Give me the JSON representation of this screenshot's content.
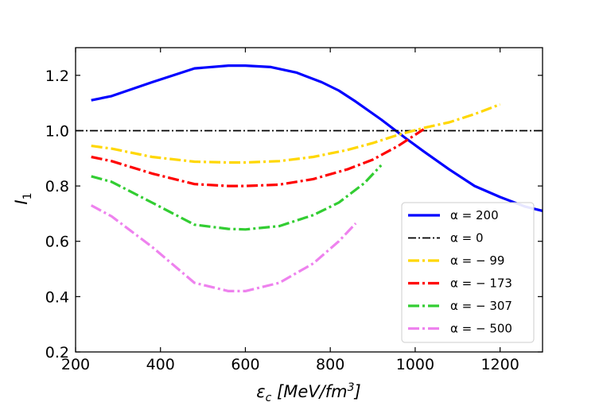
{
  "chart_data": {
    "type": "line",
    "xlabel": "ε_c [MeV/fm³]",
    "ylabel": "I_1",
    "xlim": [
      200,
      1300
    ],
    "ylim": [
      0.2,
      1.3
    ],
    "xticks": [
      "200",
      "400",
      "600",
      "800",
      "1000",
      "1200"
    ],
    "yticks": [
      "0.2",
      "0.4",
      "0.6",
      "0.8",
      "1.0",
      "1.2"
    ],
    "grid": false,
    "legend_position": "bottom-right",
    "series": [
      {
        "name": "α = 200",
        "color": "#0000ff",
        "style": "solid",
        "x": [
          237,
          285,
          380,
          480,
          560,
          600,
          660,
          720,
          780,
          820,
          860,
          920,
          980,
          1020,
          1080,
          1140,
          1200,
          1260,
          1300
        ],
        "y": [
          1.11,
          1.125,
          1.175,
          1.225,
          1.235,
          1.235,
          1.23,
          1.21,
          1.175,
          1.145,
          1.105,
          1.04,
          0.97,
          0.925,
          0.86,
          0.8,
          0.76,
          0.725,
          0.71
        ]
      },
      {
        "name": "α = 0",
        "color": "#000000",
        "style": "dashdot-thin",
        "x": [
          200,
          1300
        ],
        "y": [
          1.0,
          1.0
        ]
      },
      {
        "name": "α = − 99",
        "color": "#ffd700",
        "style": "dashdot",
        "x": [
          237,
          285,
          380,
          480,
          560,
          600,
          680,
          760,
          840,
          900,
          960,
          1020,
          1080,
          1140,
          1200
        ],
        "y": [
          0.945,
          0.935,
          0.905,
          0.888,
          0.885,
          0.885,
          0.89,
          0.905,
          0.93,
          0.955,
          0.985,
          1.01,
          1.03,
          1.06,
          1.095
        ]
      },
      {
        "name": "α = − 173",
        "color": "#ff0000",
        "style": "dashdot",
        "x": [
          237,
          285,
          380,
          480,
          560,
          600,
          680,
          760,
          840,
          900,
          960,
          1000,
          1020
        ],
        "y": [
          0.905,
          0.89,
          0.845,
          0.807,
          0.8,
          0.8,
          0.805,
          0.825,
          0.86,
          0.895,
          0.945,
          0.985,
          1.005
        ]
      },
      {
        "name": "α = − 307",
        "color": "#32cd32",
        "style": "dashdot",
        "x": [
          237,
          285,
          380,
          480,
          560,
          600,
          680,
          760,
          820,
          880,
          920
        ],
        "y": [
          0.835,
          0.815,
          0.74,
          0.66,
          0.645,
          0.643,
          0.655,
          0.695,
          0.74,
          0.81,
          0.875
        ]
      },
      {
        "name": "α = − 500",
        "color": "#ee82ee",
        "style": "dashdot",
        "x": [
          237,
          285,
          380,
          480,
          560,
          600,
          680,
          760,
          820,
          860
        ],
        "y": [
          0.73,
          0.69,
          0.58,
          0.45,
          0.42,
          0.42,
          0.45,
          0.52,
          0.6,
          0.665
        ]
      }
    ]
  }
}
